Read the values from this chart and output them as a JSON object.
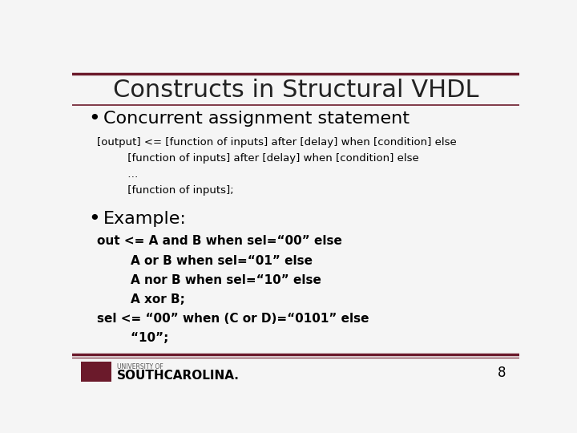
{
  "title": "Constructs in Structural VHDL",
  "bg_color": "#f5f5f5",
  "title_color": "#222222",
  "accent_color": "#6b1a2b",
  "bullet1": "Concurrent assignment statement",
  "code_block1": [
    "[output] <= [function of inputs] after [delay] when [condition] else",
    "         [function of inputs] after [delay] when [condition] else",
    "         …",
    "         [function of inputs];"
  ],
  "bullet2": "Example:",
  "code_block2": [
    "out <= A and B when sel=“00” else",
    "        A or B when sel=“01” else",
    "        A nor B when sel=“10” else",
    "        A xor B;",
    "sel <= “00” when (C or D)=“0101” else",
    "        “10”;"
  ],
  "page_number": "8",
  "title_fontsize": 22,
  "bullet_fontsize": 16,
  "code_fontsize": 9.5,
  "code2_fontsize": 11,
  "footer_univ": "UNIVERSITY OF",
  "footer_name": "SOUTHCAROLINA."
}
